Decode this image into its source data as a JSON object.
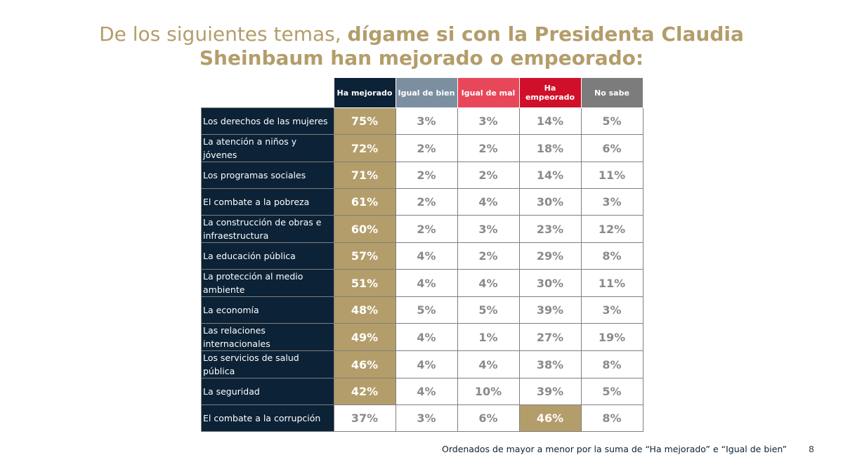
{
  "title": {
    "normal": "De los siguientes temas, ",
    "bold": "dígame si con la Presidenta Claudia Sheinbaum han mejorado o empeorado:"
  },
  "footnote": "Ordenados de mayor a menor por la suma de “Ha mejorado” e “Igual de bien”",
  "page_number": "8",
  "colors": {
    "row_label_bg": "#0c2236",
    "highlight": "#b39d6a",
    "col_ha_mejorado": "#0c2236",
    "col_igual_de_bien": "#7b8fa1",
    "col_igual_de_mal": "#e8475a",
    "col_ha_empeorado": "#d0102a",
    "col_no_sabe": "#7c7c7c",
    "value_text": "#8a8a8a"
  },
  "chart_data": {
    "type": "table",
    "columns": [
      "Ha mejorado",
      "Igual de bien",
      "Igual de mal",
      "Ha empeorado",
      "No sabe"
    ],
    "rows": [
      {
        "label": "Los derechos de las mujeres",
        "values": [
          "75%",
          "3%",
          "3%",
          "14%",
          "5%"
        ],
        "highlight": 0
      },
      {
        "label": "La atención a niños y jóvenes",
        "values": [
          "72%",
          "2%",
          "2%",
          "18%",
          "6%"
        ],
        "highlight": 0
      },
      {
        "label": "Los programas sociales",
        "values": [
          "71%",
          "2%",
          "2%",
          "14%",
          "11%"
        ],
        "highlight": 0
      },
      {
        "label": "El combate a la pobreza",
        "values": [
          "61%",
          "2%",
          "4%",
          "30%",
          "3%"
        ],
        "highlight": 0
      },
      {
        "label": "La construcción de obras e infraestructura",
        "values": [
          "60%",
          "2%",
          "3%",
          "23%",
          "12%"
        ],
        "highlight": 0
      },
      {
        "label": "La educación pública",
        "values": [
          "57%",
          "4%",
          "2%",
          "29%",
          "8%"
        ],
        "highlight": 0
      },
      {
        "label": "La protección al medio ambiente",
        "values": [
          "51%",
          "4%",
          "4%",
          "30%",
          "11%"
        ],
        "highlight": 0
      },
      {
        "label": "La economía",
        "values": [
          "48%",
          "5%",
          "5%",
          "39%",
          "3%"
        ],
        "highlight": 0
      },
      {
        "label": "Las relaciones internacionales",
        "values": [
          "49%",
          "4%",
          "1%",
          "27%",
          "19%"
        ],
        "highlight": 0
      },
      {
        "label": "Los servicios de salud pública",
        "values": [
          "46%",
          "4%",
          "4%",
          "38%",
          "8%"
        ],
        "highlight": 0
      },
      {
        "label": "La seguridad",
        "values": [
          "42%",
          "4%",
          "10%",
          "39%",
          "5%"
        ],
        "highlight": 0
      },
      {
        "label": "El combate a la corrupción",
        "values": [
          "37%",
          "3%",
          "6%",
          "46%",
          "8%"
        ],
        "highlight": 3
      }
    ]
  }
}
